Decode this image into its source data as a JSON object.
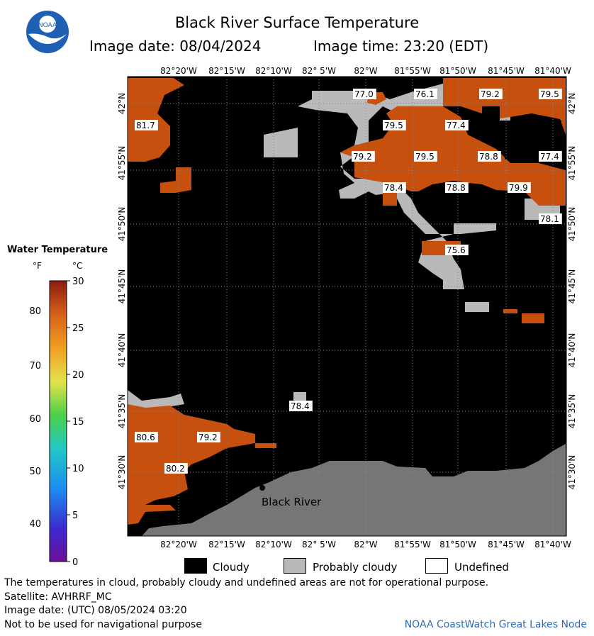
{
  "header": {
    "title": "Black River Surface Temperature",
    "image_date": "Image date: 08/04/2024",
    "image_time": "Image time: 23:20 (EDT)",
    "logo_text": "NOAA"
  },
  "legend": {
    "title": "Water Temperature",
    "unit_f": "°F",
    "unit_c": "°C",
    "f_ticks": [
      "80",
      "70",
      "60",
      "50",
      "40"
    ],
    "c_ticks": [
      "30",
      "25",
      "20",
      "15",
      "10",
      "5",
      "0"
    ]
  },
  "map": {
    "lon_top": [
      "82°20'W",
      "82°15'W",
      "82°10'W",
      "82° 5'W",
      "82°W",
      "81°55'W",
      "81°50'W",
      "81°45'W",
      "81°40'W"
    ],
    "lon_bottom": [
      "82°20'W",
      "82°15'W",
      "82°10'W",
      "82° 5'W",
      "82°W",
      "81°55'W",
      "81°50'W",
      "81°45'W",
      "81°40'W"
    ],
    "lat_left": [
      "42°N",
      "41°55'N",
      "41°50'N",
      "41°45'N",
      "41°40'N",
      "41°35'N",
      "41°30'N"
    ],
    "lat_right": [
      "42°N",
      "41°55'N",
      "41°50'N",
      "41°45'N",
      "41°40'N",
      "41°35'N",
      "41°30'N"
    ],
    "temps": {
      "t1": "77.0",
      "t2": "76.1",
      "t3": "79.2",
      "t4": "79.5",
      "t5": "81.7",
      "t6": "79.5",
      "t7": "77.4",
      "t8": "79.2",
      "t9": "79.5",
      "t10": "78.8",
      "t11": "77.4",
      "t12": "78.4",
      "t13": "78.8",
      "t14": "79.9",
      "t15": "78.1",
      "t16": "75.6",
      "t17": "78.4",
      "t18": "80.6",
      "t19": "79.2",
      "t20": "80.2"
    },
    "place_label": "Black River",
    "colors": {
      "cloud": "#000000",
      "probably_cloudy": "#b9b9b9",
      "land": "#767676",
      "warm_water": "#c8500f"
    }
  },
  "key": {
    "cloudy": "Cloudy",
    "probably_cloudy": "Probably cloudy",
    "undefined": "Undefined"
  },
  "footer": {
    "line1": "The temperatures in cloud, probably cloudy and undefined areas are not for operational purpose.",
    "line2": "Satellite: AVHRRF_MC",
    "line3": "Image date: (UTC) 08/05/2024  03:20",
    "line4": "Not to be used for navigational purpose",
    "credit": "NOAA CoastWatch Great Lakes Node"
  }
}
